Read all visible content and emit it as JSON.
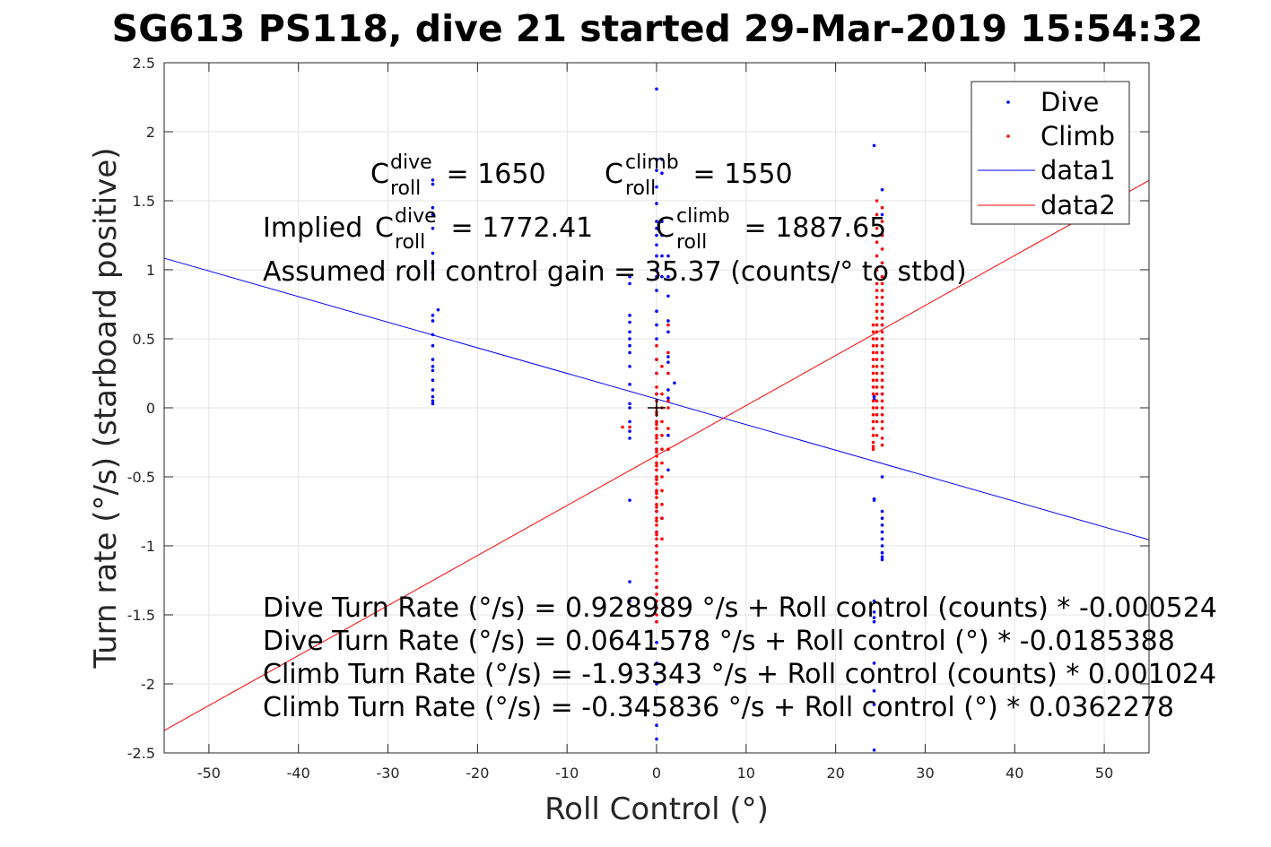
{
  "chart_data": {
    "type": "scatter",
    "title": "SG613 PS118, dive 21 started 29-Mar-2019 15:54:32",
    "xlabel": "Roll Control (°)",
    "ylabel": "Turn rate (°/s) (starboard positive)",
    "xlim": [
      -55,
      55
    ],
    "ylim": [
      -2.5,
      2.5
    ],
    "xticks": [
      -50,
      -40,
      -30,
      -20,
      -10,
      0,
      10,
      20,
      30,
      40,
      50
    ],
    "xtick_labels": [
      "-50",
      "-40",
      "-30",
      "-20",
      "-10",
      "0",
      "10",
      "20",
      "30",
      "40",
      "50"
    ],
    "yticks": [
      -2.5,
      -2,
      -1.5,
      -1,
      -0.5,
      0,
      0.5,
      1,
      1.5,
      2,
      2.5
    ],
    "ytick_labels": [
      "-2.5",
      "-2",
      "-1.5",
      "-1",
      "-0.5",
      "0",
      "0.5",
      "1",
      "1.5",
      "2",
      "2.5"
    ],
    "grid": true,
    "legend_position": "top-right",
    "series": [
      {
        "name": "Dive",
        "kind": "points",
        "color": "#0000ff",
        "x": [
          -25,
          -25,
          -25,
          -25,
          -25,
          -25,
          -25,
          -25,
          -25,
          -25,
          -25,
          -25,
          -25,
          -25,
          -25,
          -25,
          -25,
          -25,
          -25,
          -25,
          -24.4,
          -3,
          -3,
          -3,
          -3,
          -3,
          -3,
          -3,
          -3,
          -3,
          -3,
          -3,
          -3,
          -3,
          -3,
          -3,
          -3,
          -3,
          -3,
          0,
          0,
          0,
          0,
          0,
          0,
          0,
          0,
          0,
          0,
          0,
          0,
          0,
          0,
          0,
          0,
          0,
          0,
          0,
          0,
          0,
          0,
          0,
          0,
          0,
          0,
          0,
          0,
          0,
          0,
          0,
          0,
          0,
          0,
          0,
          0,
          0.6,
          0.6,
          0.6,
          0.6,
          0.6,
          0.6,
          0.6,
          1.3,
          1.3,
          1.3,
          1.3,
          1.3,
          1.3,
          1.3,
          1.3,
          1.3,
          1.3,
          1.3,
          1.3,
          2.0,
          24.3,
          24.3,
          24.3,
          24.3,
          24.3,
          24.3,
          24.3,
          24.3,
          24.3,
          24.3,
          24.3,
          24.3,
          24.3,
          25.2,
          25.2,
          25.2,
          25.2,
          25.2,
          25.2,
          25.2,
          25.2,
          25.2,
          25.2,
          25.2,
          25.2,
          25.2,
          25.2,
          25.2,
          25.2,
          25.2,
          25.2,
          25.2,
          25.2
        ],
        "y": [
          1.65,
          1.62,
          1.45,
          1.4,
          1.3,
          1.12,
          1.05,
          0.98,
          0.67,
          0.63,
          0.53,
          0.45,
          0.35,
          0.3,
          0.27,
          0.2,
          0.13,
          0.08,
          0.05,
          0.03,
          0.71,
          0.95,
          0.9,
          0.67,
          0.62,
          0.55,
          0.5,
          0.45,
          0.4,
          0.3,
          0.17,
          0.03,
          0.0,
          -0.1,
          -0.17,
          -0.22,
          -0.67,
          -1.26,
          -1.4,
          2.31,
          1.8,
          1.72,
          1.6,
          1.48,
          1.35,
          1.3,
          1.25,
          1.18,
          1.1,
          1.0,
          0.95,
          0.85,
          0.7,
          0.6,
          0.5,
          0.35,
          0.25,
          0.1,
          -0.1,
          -0.3,
          -0.5,
          -0.6,
          -0.75,
          -0.9,
          -1.0,
          -1.1,
          -1.3,
          -1.45,
          -1.55,
          -1.7,
          -1.85,
          -2.0,
          -2.15,
          -2.3,
          -2.4,
          1.8,
          1.7,
          1.35,
          1.25,
          1.1,
          0.95,
          -0.8,
          1.1,
          0.95,
          0.81,
          0.63,
          0.55,
          0.37,
          0.33,
          0.25,
          0.13,
          0.07,
          -0.2,
          -0.45,
          0.18,
          1.9,
          0.08,
          0.06,
          -0.66,
          -0.67,
          -1.4,
          -1.48,
          -1.52,
          -1.55,
          -1.85,
          -2.05,
          -2.15,
          -2.48,
          1.58,
          1.4,
          1.25,
          1.05,
          0.95,
          0.75,
          0.6,
          0.4,
          0.25,
          0.1,
          -0.5,
          -0.75,
          -0.8,
          -0.85,
          -0.9,
          -0.95,
          -1.0,
          -1.05,
          -1.08,
          -1.1
        ]
      },
      {
        "name": "Climb",
        "kind": "points",
        "color": "#ff0000",
        "x": [
          -3.8,
          -3.0,
          0,
          0,
          0,
          0,
          0,
          0,
          0,
          0,
          0,
          0,
          0,
          0,
          0,
          0,
          0,
          0,
          0,
          0,
          0,
          0,
          0,
          0,
          0,
          0,
          0,
          0,
          0,
          0,
          0,
          0,
          0,
          0,
          0,
          0,
          0,
          0,
          0,
          0,
          0,
          0,
          0,
          0,
          0,
          0,
          0,
          0,
          0,
          0,
          0.6,
          0.6,
          0.6,
          0.6,
          0.6,
          0.6,
          0.6,
          0.6,
          0.6,
          0.6,
          0.6,
          0.6,
          1.3,
          1.3,
          1.3,
          1.3,
          1.3,
          1.3,
          1.3,
          24.2,
          24.2,
          24.2,
          24.2,
          24.2,
          24.2,
          24.2,
          24.2,
          24.2,
          24.2,
          24.2,
          24.2,
          24.2,
          24.2,
          24.2,
          24.2,
          24.2,
          24.2,
          24.2,
          24.2,
          24.6,
          24.6,
          24.6,
          24.6,
          24.6,
          24.6,
          24.6,
          24.6,
          24.6,
          24.6,
          24.6,
          24.6,
          24.6,
          24.6,
          24.6,
          24.6,
          24.6,
          24.6,
          24.6,
          24.6,
          24.6,
          24.6,
          24.6,
          24.6,
          24.6,
          24.6,
          24.6,
          24.6,
          25.2,
          25.2,
          25.2,
          25.2,
          25.2,
          25.2,
          25.2,
          25.2,
          25.2,
          25.2,
          25.2,
          25.2,
          25.2,
          25.2,
          25.2,
          25.2,
          25.2,
          25.2,
          25.2,
          25.2,
          25.2,
          25.2,
          25.2,
          25.2,
          25.2,
          25.2,
          25.2,
          25.2,
          25.2,
          25.2
        ],
        "y": [
          -0.14,
          -0.14,
          0.45,
          0.35,
          0.25,
          0.15,
          0.1,
          0.05,
          0.0,
          -0.05,
          -0.1,
          -0.15,
          -0.2,
          -0.25,
          -0.3,
          -0.35,
          -0.4,
          -0.45,
          -0.5,
          -0.55,
          -0.6,
          -0.65,
          -0.7,
          -0.75,
          -0.8,
          -0.85,
          -0.9,
          -0.95,
          -1.0,
          -1.05,
          -1.1,
          -1.15,
          -1.2,
          -1.25,
          -1.3,
          -1.35,
          -1.4,
          -1.45,
          -1.5,
          -1.55,
          -0.03,
          -0.12,
          -0.22,
          -0.32,
          -0.42,
          -0.52,
          -0.62,
          -0.72,
          -0.82,
          -0.92,
          0.3,
          0.1,
          0.0,
          -0.1,
          -0.2,
          -0.3,
          -0.4,
          -0.5,
          -0.6,
          -0.7,
          -0.8,
          -0.95,
          0.6,
          0.4,
          0.25,
          0.05,
          0.0,
          -0.15,
          -0.3,
          0.6,
          0.55,
          0.5,
          0.45,
          0.4,
          0.35,
          0.3,
          0.25,
          0.2,
          0.15,
          0.1,
          0.05,
          0.0,
          -0.05,
          -0.1,
          -0.15,
          -0.2,
          -0.25,
          -0.28,
          -0.3,
          1.5,
          1.4,
          1.3,
          1.2,
          1.1,
          1.0,
          0.9,
          0.85,
          0.8,
          0.75,
          0.7,
          0.65,
          0.6,
          0.55,
          0.5,
          0.45,
          0.4,
          0.35,
          0.3,
          0.25,
          0.2,
          0.15,
          0.1,
          0.05,
          0.0,
          -0.05,
          -0.1,
          -0.2,
          1.45,
          1.35,
          1.25,
          1.15,
          1.05,
          0.95,
          0.9,
          0.85,
          0.8,
          0.75,
          0.7,
          0.65,
          0.6,
          0.55,
          0.5,
          0.45,
          0.4,
          0.35,
          0.3,
          0.25,
          0.2,
          0.15,
          0.1,
          0.05,
          0.0,
          -0.05,
          -0.1,
          -0.15,
          -0.22,
          -0.27
        ]
      },
      {
        "name": "data1",
        "kind": "line",
        "color": "#0000ff",
        "x": [
          -55,
          55
        ],
        "y": [
          1.084,
          -0.956
        ]
      },
      {
        "name": "data2",
        "kind": "line",
        "color": "#ff0000",
        "x": [
          -55,
          55
        ],
        "y": [
          -2.338,
          1.647
        ]
      }
    ],
    "crosshair_marker": {
      "x": 0,
      "y": 0,
      "color": "#000000"
    },
    "annotations": {
      "c_dive": {
        "base": "C",
        "sup": "dive",
        "sub": "roll",
        "rest": " = 1650"
      },
      "c_climb": {
        "base": "C",
        "sup": "climb",
        "sub": "roll",
        "rest": " = 1550"
      },
      "implied_prefix": "Implied ",
      "implied_dive": {
        "base": "C",
        "sup": "dive",
        "sub": "roll",
        "rest": " = 1772.41"
      },
      "implied_climb": {
        "base": "C",
        "sup": "climb",
        "sub": "roll",
        "rest": " = 1887.65"
      },
      "gain": "Assumed roll control gain = 35.37 (counts/° to stbd)",
      "fits": [
        "Dive Turn Rate (°/s) = 0.928989 °/s + Roll control (counts) * -0.000524",
        "Dive Turn Rate (°/s) = 0.0641578 °/s + Roll control (°) * -0.0185388",
        "Climb Turn Rate (°/s) = -1.93343 °/s + Roll control (counts) * 0.001024",
        "Climb Turn Rate (°/s) = -0.345836 °/s + Roll control (°) * 0.0362278"
      ]
    }
  }
}
